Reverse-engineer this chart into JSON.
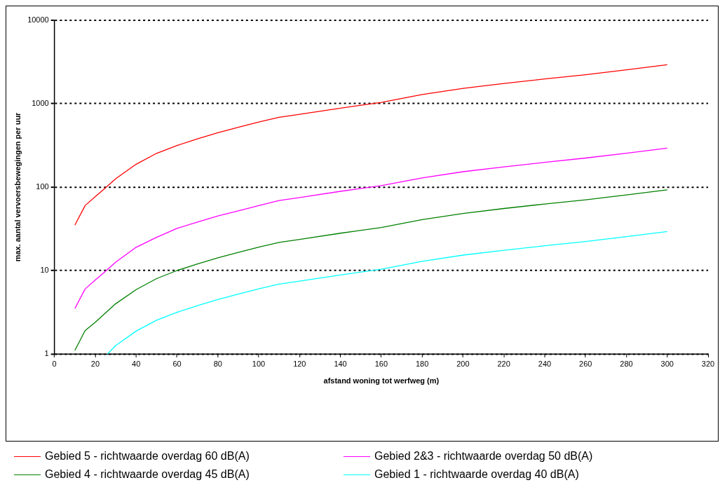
{
  "chart_data": {
    "type": "line",
    "xlabel": "afstand woning tot werfweg (m)",
    "ylabel": "max. aantal vervoersbewegingen per uur",
    "log": "y",
    "grid": "y",
    "legend": "bottom",
    "marker": "none",
    "line_style": "solid",
    "xlim": [
      0,
      320
    ],
    "xticks": [
      0,
      20,
      40,
      60,
      80,
      100,
      120,
      140,
      160,
      180,
      200,
      220,
      240,
      260,
      280,
      300,
      320
    ],
    "ylim": [
      1,
      10000
    ],
    "yticks": [
      1,
      10,
      100,
      1000,
      10000
    ],
    "series": [
      {
        "name": "Gebied 5 - richtwaarde overdag 60 dB(A)",
        "color": "#ff0000",
        "x": [
          10,
          15,
          20,
          25,
          30,
          40,
          50,
          60,
          70,
          80,
          90,
          100,
          110,
          120,
          140,
          160,
          180,
          200,
          220,
          240,
          260,
          280,
          300
        ],
        "values": [
          35,
          60,
          77,
          98,
          126,
          188,
          254,
          315,
          379,
          448,
          522,
          604,
          687,
          745,
          885,
          1035,
          1288,
          1527,
          1750,
          1980,
          2225,
          2550,
          2925
        ]
      },
      {
        "name": "Gebied 2&3 - richtwaarde overdag 50 dB(A)",
        "color": "#ff00ff",
        "x": [
          10,
          15,
          20,
          25,
          30,
          40,
          50,
          60,
          70,
          80,
          90,
          100,
          110,
          120,
          140,
          160,
          180,
          200,
          220,
          240,
          260,
          280,
          300
        ],
        "values": [
          3.5,
          6.0,
          7.7,
          9.8,
          12.6,
          19,
          25,
          32,
          38,
          45,
          52,
          60,
          69,
          75,
          89,
          104,
          129,
          153,
          175,
          198,
          223,
          255,
          293
        ]
      },
      {
        "name": "Gebied 4 - richtwaarde overdag 45 dB(A)",
        "color": "#008000",
        "x": [
          10,
          15,
          20,
          25,
          30,
          40,
          50,
          60,
          70,
          80,
          90,
          100,
          110,
          120,
          140,
          160,
          180,
          200,
          220,
          240,
          260,
          280,
          300
        ],
        "values": [
          1.1,
          1.9,
          2.4,
          3.1,
          4.0,
          5.9,
          8.0,
          10.0,
          12.0,
          14.2,
          16.5,
          19.1,
          21.7,
          23.6,
          28,
          32.8,
          40.8,
          48.3,
          55.4,
          62.7,
          70.4,
          80.7,
          92.6
        ]
      },
      {
        "name": "Gebied 1 - richtwaarde overdag 40 dB(A)",
        "color": "#00ffff",
        "x": [
          26,
          30,
          40,
          50,
          60,
          70,
          80,
          90,
          100,
          110,
          120,
          140,
          160,
          180,
          200,
          220,
          240,
          260,
          280,
          300
        ],
        "values": [
          1.0,
          1.26,
          1.88,
          2.54,
          3.15,
          3.79,
          4.48,
          5.22,
          6.04,
          6.87,
          7.45,
          8.85,
          10.35,
          12.9,
          15.3,
          17.5,
          19.8,
          22.3,
          25.5,
          29.3
        ]
      }
    ]
  }
}
